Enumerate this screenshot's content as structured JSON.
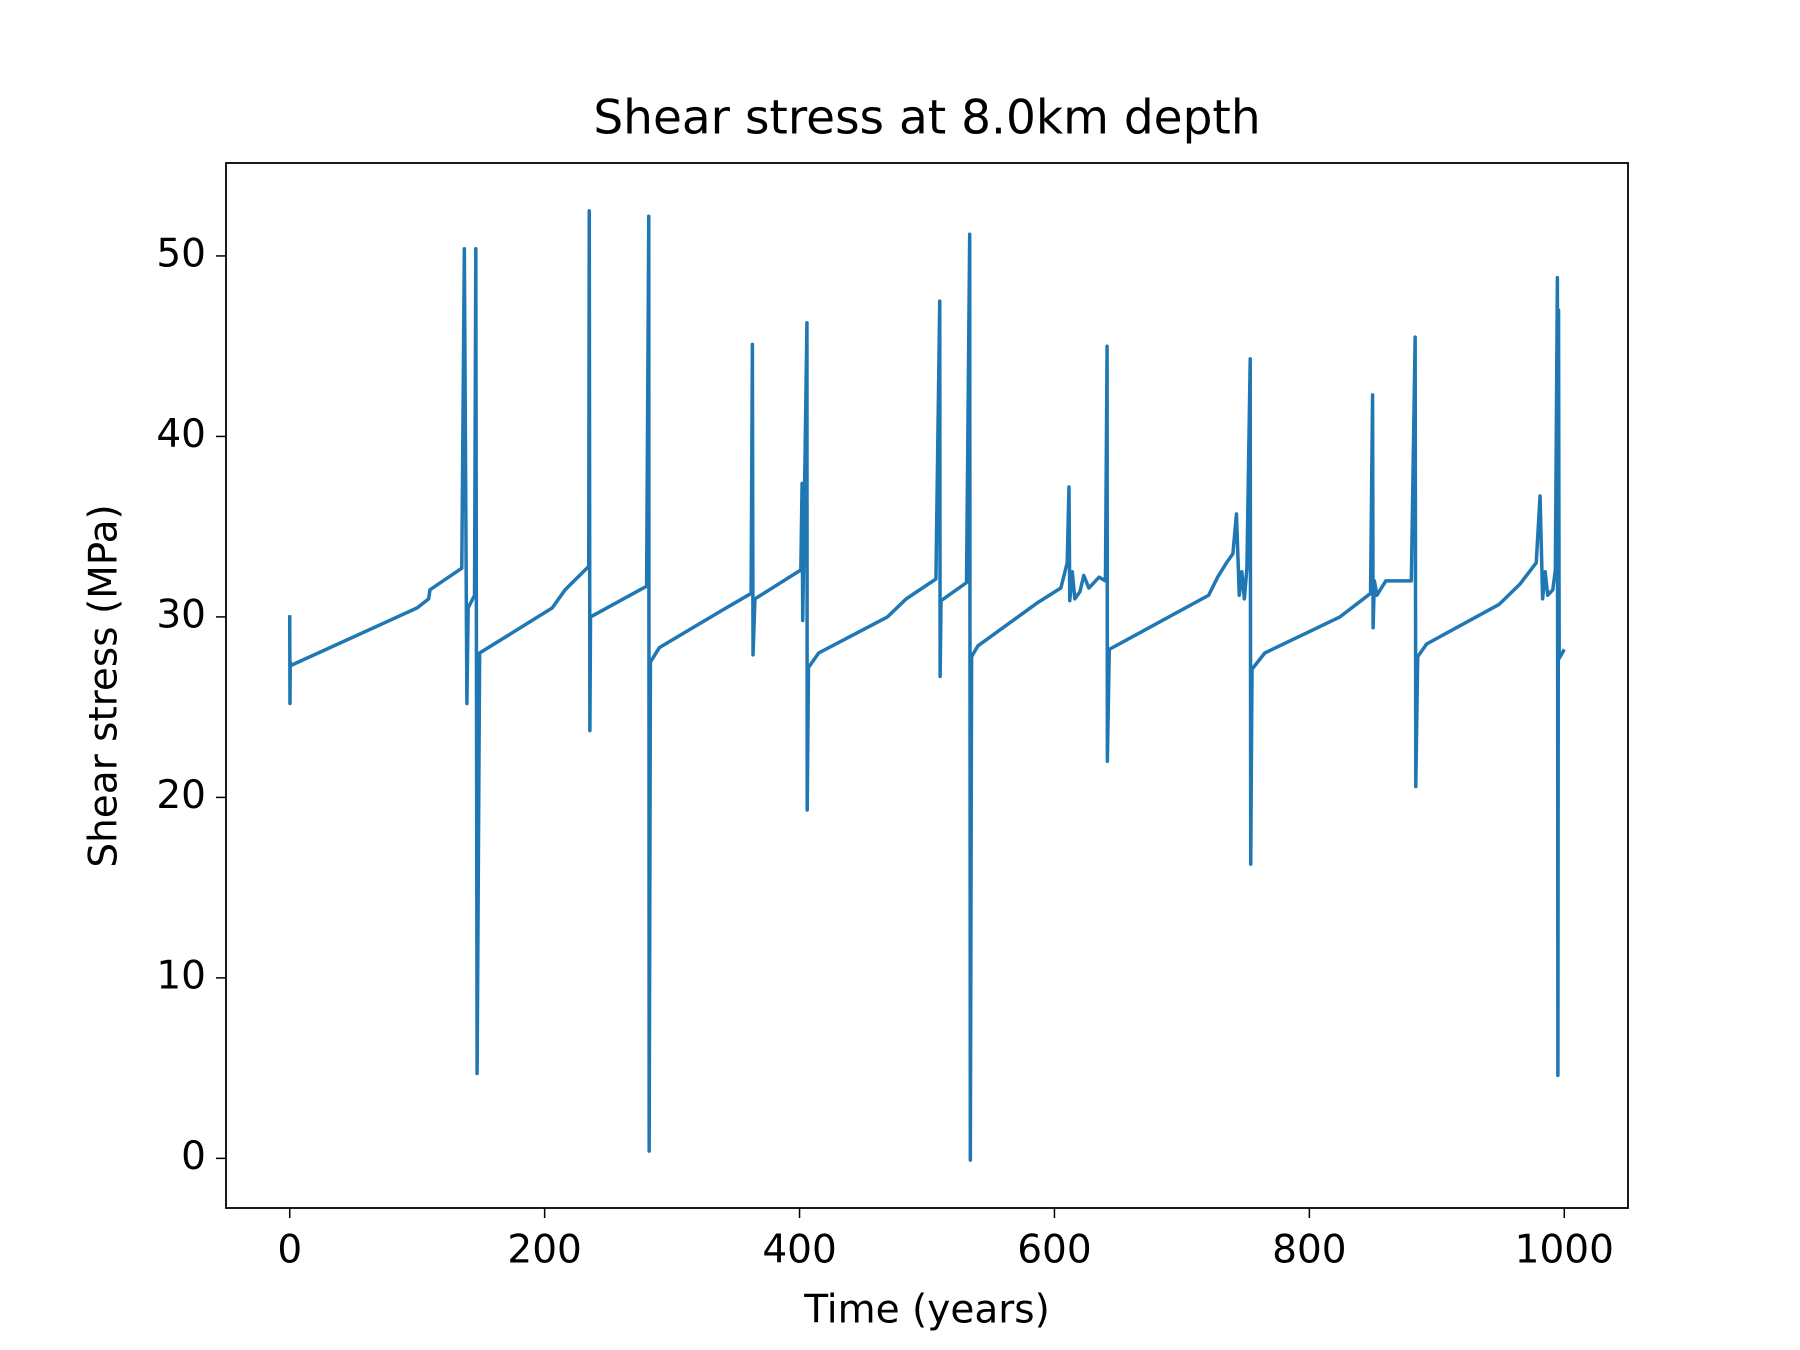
{
  "chart_data": {
    "type": "line",
    "title": "Shear stress at 8.0km depth",
    "x_label": "Time (years)",
    "y_label": "Shear stress (MPa)",
    "x": [
      0,
      0.2,
      0.4,
      0.6,
      100,
      109,
      110,
      135,
      137,
      139,
      140,
      145,
      146,
      147,
      149,
      206,
      216,
      234.6,
      235,
      235.5,
      236,
      280,
      281.7,
      282,
      283,
      290,
      340,
      362,
      363,
      363.5,
      365,
      401,
      402,
      402.5,
      405.8,
      406,
      407,
      415,
      469,
      483.7,
      507,
      510,
      510.3,
      511,
      531,
      533.5,
      534,
      535,
      540,
      587,
      605,
      610,
      611.4,
      612,
      614,
      616,
      620,
      623,
      627,
      635,
      640,
      641.3,
      641.5,
      643,
      721,
      728,
      735,
      740,
      742.8,
      745,
      747,
      749,
      751,
      753.6,
      754,
      755,
      765,
      824,
      848,
      849.6,
      850,
      851,
      853,
      860,
      880,
      883,
      883.5,
      885,
      892,
      949,
      965,
      978,
      981,
      983,
      985,
      987,
      991,
      993,
      994.6,
      995,
      995.5,
      996,
      1000
    ],
    "series": [
      {
        "name": "Shear stress",
        "color": "#1f77b4",
        "values": [
          30.1,
          25.2,
          27.5,
          27.3,
          30.5,
          31.0,
          31.5,
          32.7,
          50.4,
          25.2,
          30.5,
          31.2,
          50.4,
          4.7,
          28.0,
          30.5,
          31.5,
          32.8,
          52.5,
          23.7,
          30.0,
          31.7,
          52.2,
          0.4,
          27.5,
          28.3,
          30.4,
          31.3,
          45.1,
          27.9,
          31.0,
          32.6,
          37.4,
          29.8,
          46.3,
          19.3,
          27.2,
          28.0,
          30.0,
          31.0,
          32.1,
          47.5,
          26.7,
          30.9,
          31.9,
          51.2,
          -0.1,
          27.8,
          28.4,
          30.8,
          31.6,
          33.0,
          37.2,
          30.9,
          32.5,
          31.0,
          31.4,
          32.3,
          31.6,
          32.2,
          32.0,
          45.0,
          22.0,
          28.2,
          31.2,
          32.2,
          33.0,
          33.5,
          35.7,
          31.2,
          32.5,
          31.0,
          32.7,
          44.3,
          16.3,
          27.1,
          28.0,
          30.0,
          31.3,
          42.3,
          29.4,
          32.0,
          31.2,
          32.0,
          32.0,
          45.5,
          20.6,
          27.8,
          28.5,
          30.7,
          31.8,
          33.0,
          36.7,
          31.0,
          32.5,
          31.2,
          31.5,
          32.6,
          48.8,
          4.6,
          47.0,
          27.7,
          28.2
        ]
      }
    ],
    "xlim": [
      -50,
      1050
    ],
    "xticks": [
      0,
      200,
      400,
      600,
      800,
      1000
    ],
    "ylim": [
      -2.75,
      55.15
    ],
    "yticks": [
      0,
      10,
      20,
      30,
      40,
      50
    ]
  }
}
